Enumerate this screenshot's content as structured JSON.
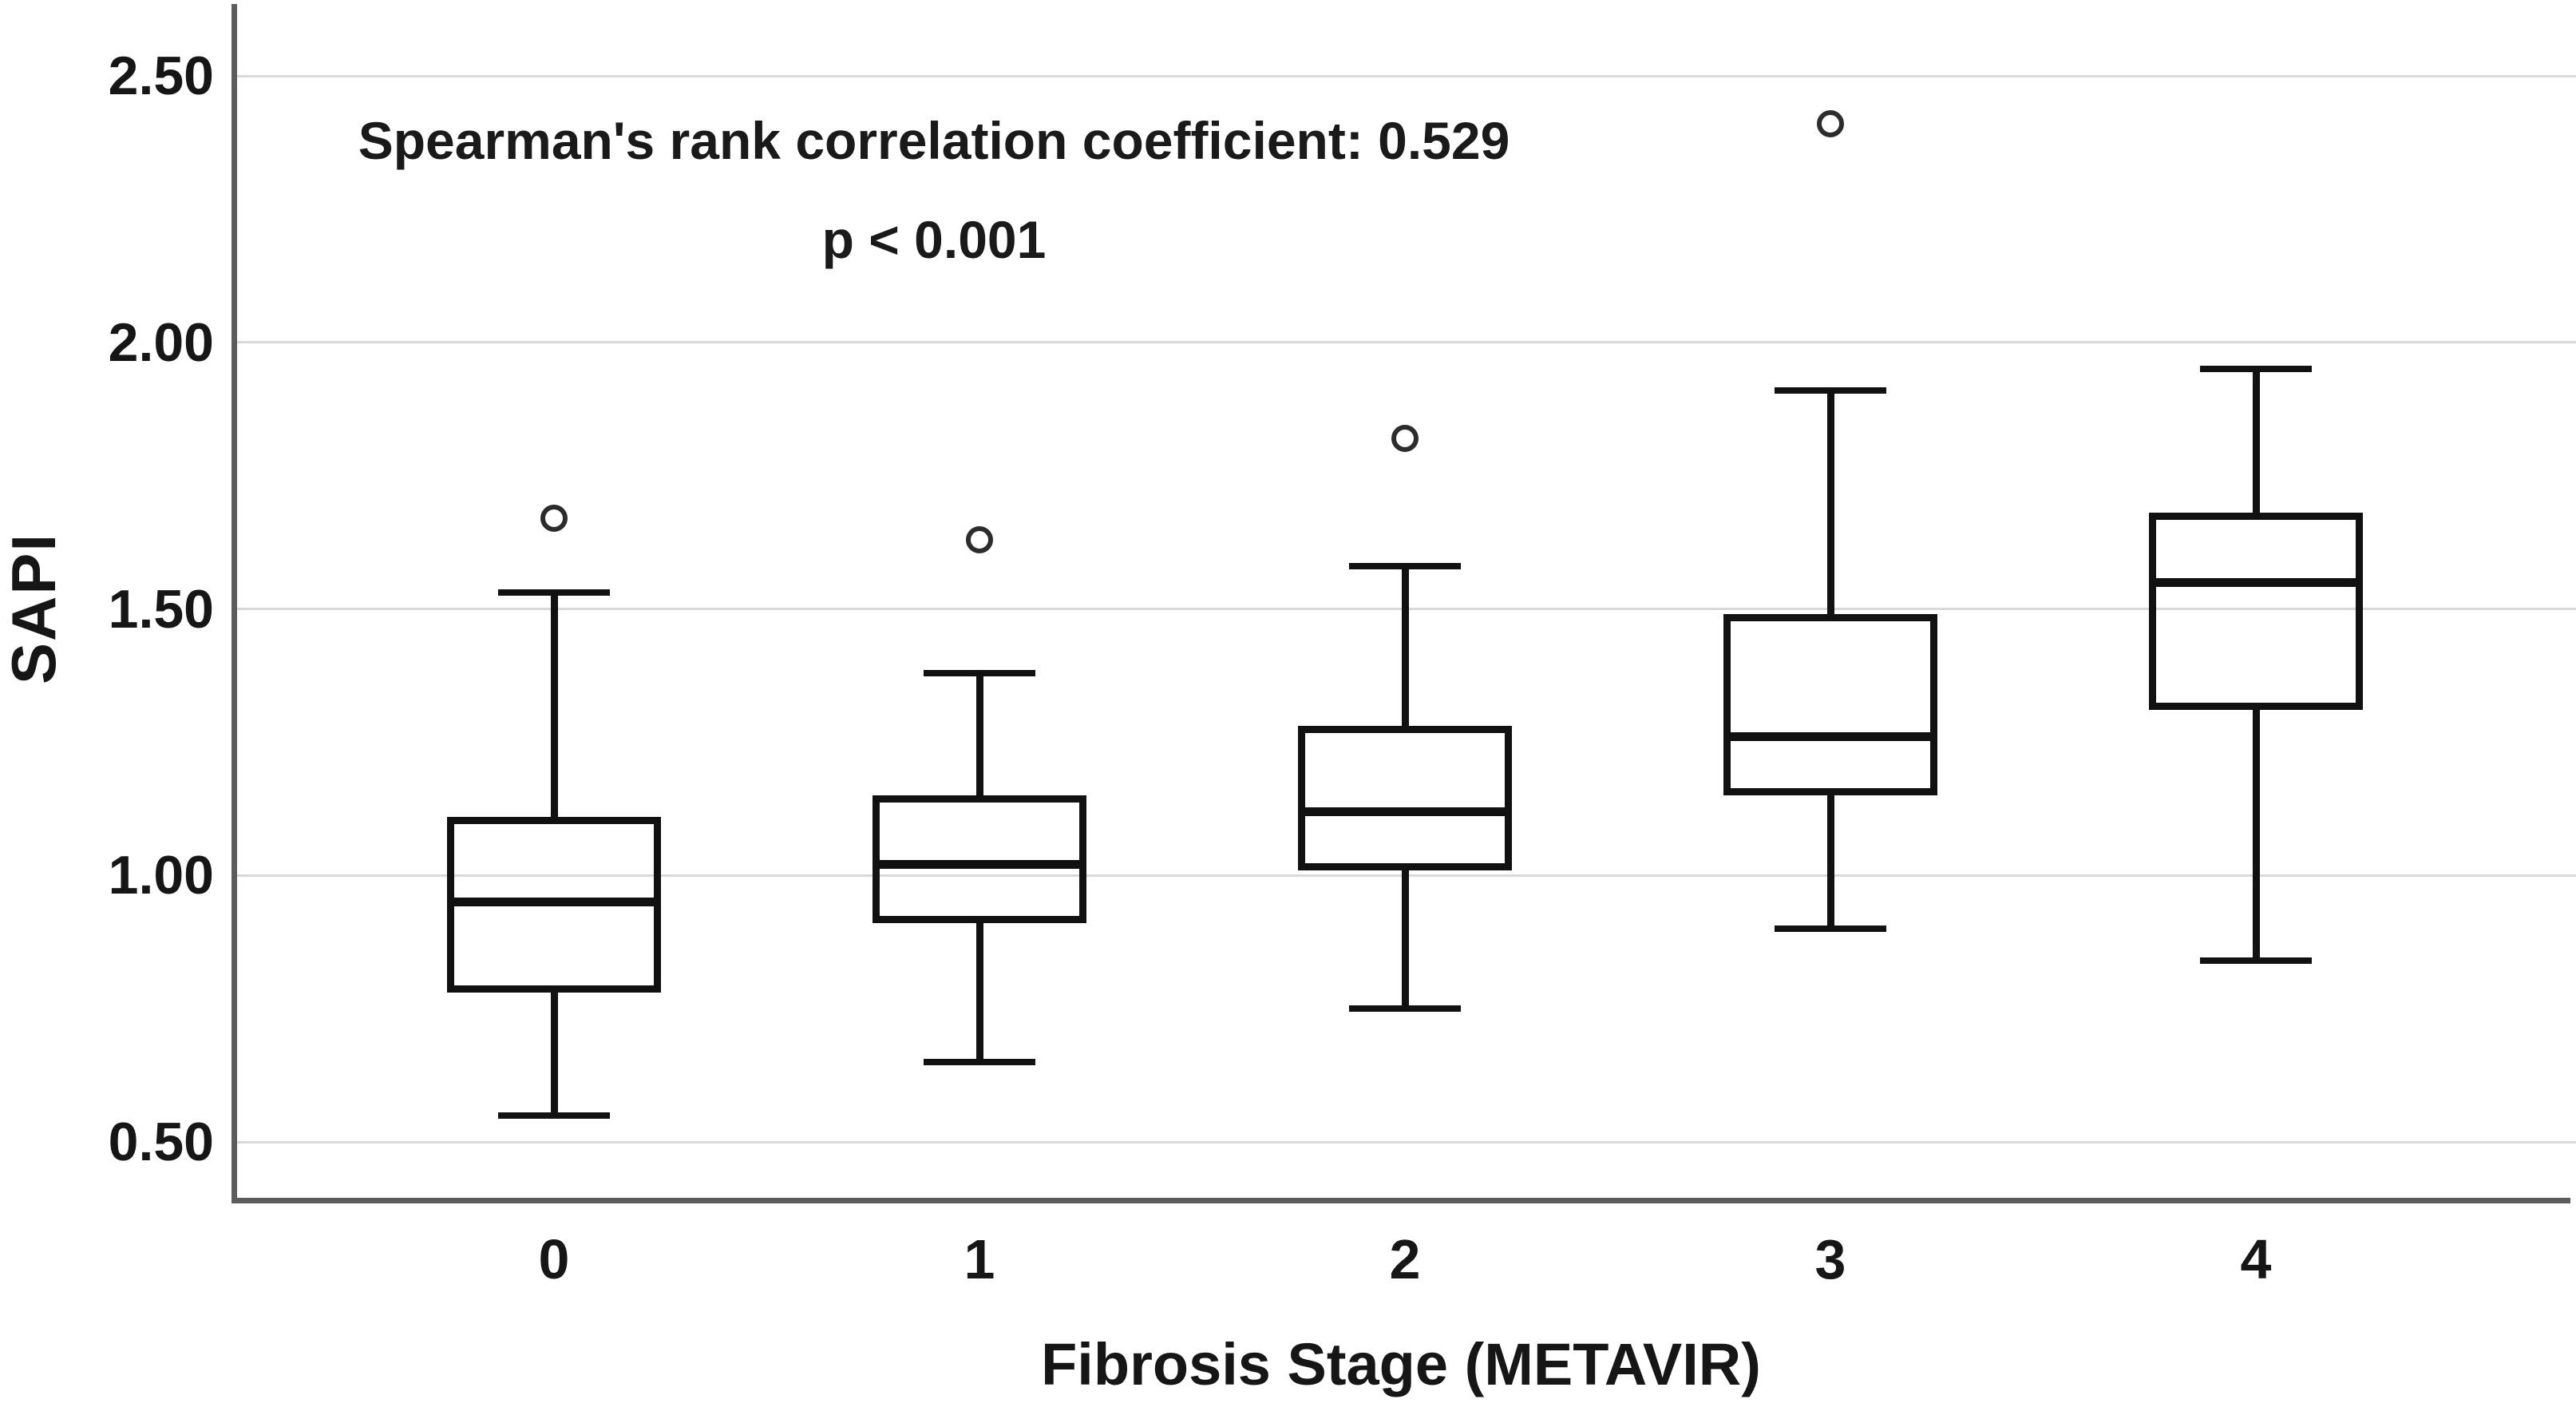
{
  "figure": {
    "background": "#ffffff"
  },
  "chart_data": {
    "type": "boxplot",
    "title": "",
    "xlabel": "Fibrosis Stage (METAVIR)",
    "ylabel": "SAPI",
    "categories": [
      "0",
      "1",
      "2",
      "3",
      "4"
    ],
    "y_ticks": [
      {
        "label": "2.50",
        "value": 2.5
      },
      {
        "label": "2.00",
        "value": 2.0
      },
      {
        "label": "1.50",
        "value": 1.5
      },
      {
        "label": "1.00",
        "value": 1.0
      },
      {
        "label": "0.50",
        "value": 0.5
      }
    ],
    "ylim": [
      0.39,
      2.64
    ],
    "grid": "horizontal-only",
    "legend": "none",
    "annotation": [
      "Spearman's rank correlation coefficient: 0.529",
      "p < 0.001"
    ],
    "series": [
      {
        "category": "0",
        "whisker_low": 0.55,
        "q1": 0.78,
        "median": 0.95,
        "q3": 1.11,
        "whisker_high": 1.53,
        "outliers": [
          1.67
        ]
      },
      {
        "category": "1",
        "whisker_low": 0.65,
        "q1": 0.91,
        "median": 1.02,
        "q3": 1.15,
        "whisker_high": 1.38,
        "outliers": [
          1.63
        ]
      },
      {
        "category": "2",
        "whisker_low": 0.75,
        "q1": 1.01,
        "median": 1.12,
        "q3": 1.28,
        "whisker_high": 1.58,
        "outliers": [
          1.82
        ]
      },
      {
        "category": "3",
        "whisker_low": 0.9,
        "q1": 1.15,
        "median": 1.26,
        "q3": 1.49,
        "whisker_high": 1.91,
        "outliers": [
          2.41
        ]
      },
      {
        "category": "4",
        "whisker_low": 0.84,
        "q1": 1.31,
        "median": 1.55,
        "q3": 1.68,
        "whisker_high": 1.95,
        "outliers": []
      }
    ],
    "colors": {
      "ink": "#111111",
      "grid": "#d9d9d9",
      "axis": "#5c5c5c",
      "text": "#161616",
      "background": "#ffffff"
    }
  }
}
